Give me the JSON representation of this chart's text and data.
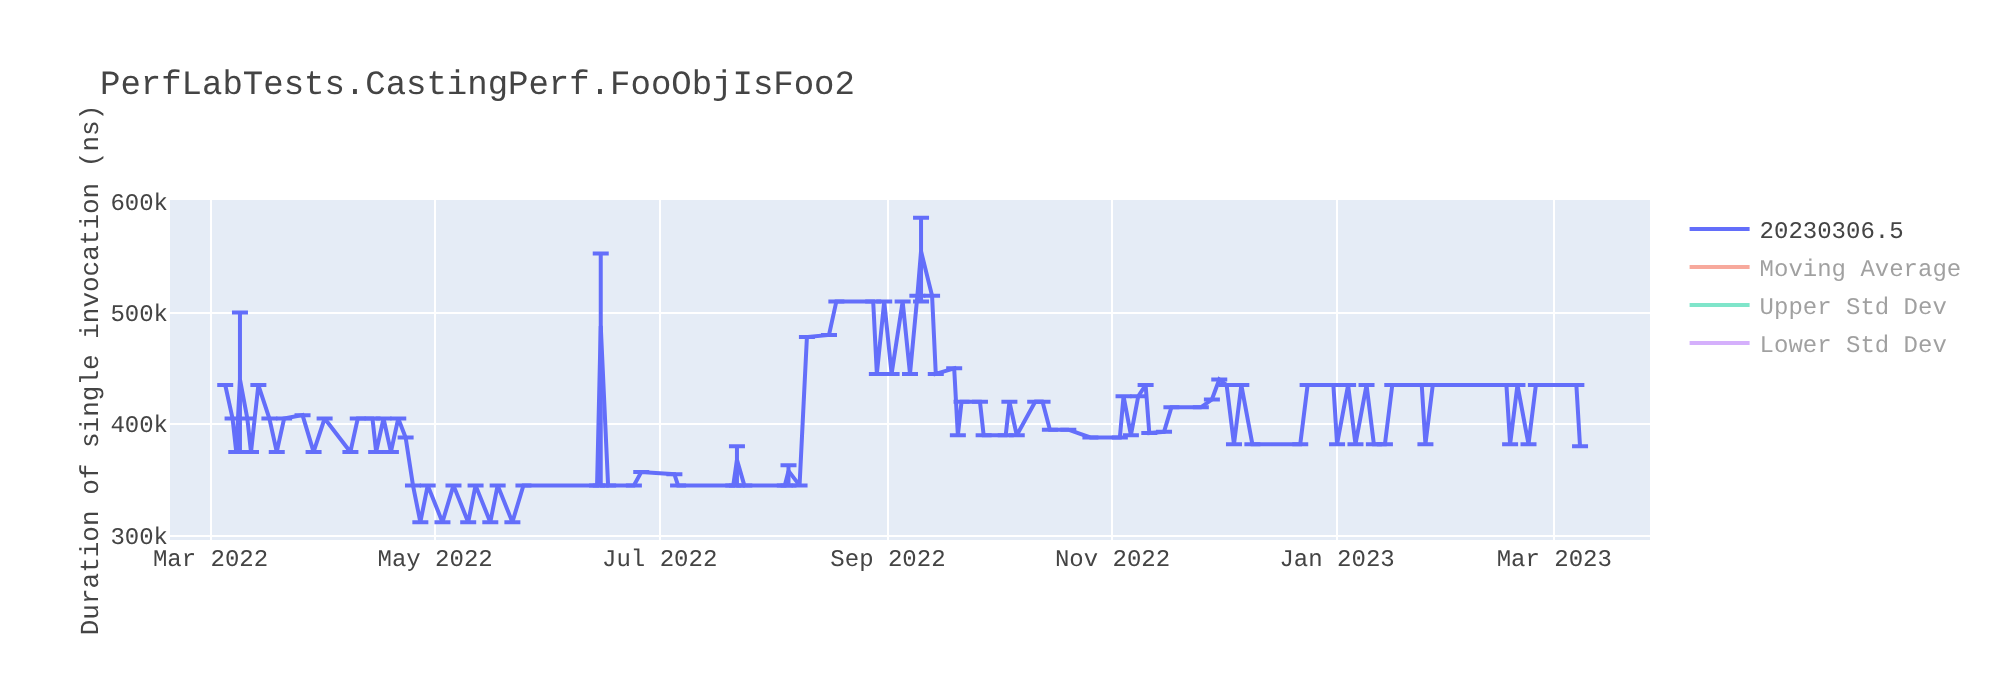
{
  "chart_data": {
    "type": "line",
    "title": "PerfLabTests.CastingPerf.FooObjIsFoo2",
    "ylabel": "Duration of single invocation (ns)",
    "x": [
      "2022-03-05",
      "2022-03-07",
      "2022-03-08",
      "2022-03-09",
      "2022-03-11",
      "2022-03-12",
      "2022-03-14",
      "2022-03-17",
      "2022-03-19",
      "2022-03-21",
      "2022-03-26",
      "2022-03-29",
      "2022-04-01",
      "2022-04-08",
      "2022-04-10",
      "2022-04-14",
      "2022-04-15",
      "2022-04-17",
      "2022-04-19",
      "2022-04-21",
      "2022-04-23",
      "2022-04-25",
      "2022-04-27",
      "2022-04-29",
      "2022-05-03",
      "2022-05-06",
      "2022-05-10",
      "2022-05-12",
      "2022-05-16",
      "2022-05-18",
      "2022-05-22",
      "2022-05-25",
      "2022-06-14",
      "2022-06-15",
      "2022-06-17",
      "2022-06-24",
      "2022-06-26",
      "2022-07-05",
      "2022-07-06",
      "2022-07-21",
      "2022-07-22",
      "2022-07-24",
      "2022-08-04",
      "2022-08-05",
      "2022-08-08",
      "2022-08-10",
      "2022-08-16",
      "2022-08-18",
      "2022-08-28",
      "2022-08-29",
      "2022-08-31",
      "2022-09-02",
      "2022-09-05",
      "2022-09-07",
      "2022-09-09",
      "2022-09-10",
      "2022-09-13",
      "2022-09-14",
      "2022-09-19",
      "2022-09-20",
      "2022-09-21",
      "2022-09-26",
      "2022-09-27",
      "2022-10-03",
      "2022-10-04",
      "2022-10-06",
      "2022-10-11",
      "2022-10-13",
      "2022-10-15",
      "2022-10-20",
      "2022-10-26",
      "2022-11-03",
      "2022-11-04",
      "2022-11-06",
      "2022-11-08",
      "2022-11-10",
      "2022-11-11",
      "2022-11-15",
      "2022-11-17",
      "2022-11-25",
      "2022-11-28",
      "2022-11-30",
      "2022-12-02",
      "2022-12-04",
      "2022-12-06",
      "2022-12-09",
      "2022-12-22",
      "2022-12-24",
      "2022-12-31",
      "2023-01-01",
      "2023-01-04",
      "2023-01-06",
      "2023-01-09",
      "2023-01-11",
      "2023-01-14",
      "2023-01-16",
      "2023-01-24",
      "2023-01-25",
      "2023-01-27",
      "2023-02-16",
      "2023-02-17",
      "2023-02-19",
      "2023-02-22",
      "2023-02-24",
      "2023-03-07",
      "2023-03-08"
    ],
    "series": [
      {
        "name": "20230306.5",
        "color": "#636efa",
        "values": [
          435000,
          405000,
          375000,
          440000,
          405000,
          375000,
          435000,
          405000,
          375000,
          405000,
          408000,
          375000,
          405000,
          375000,
          405000,
          405000,
          375000,
          405000,
          375000,
          405000,
          388000,
          345000,
          312000,
          345000,
          312000,
          345000,
          312000,
          345000,
          312000,
          345000,
          312000,
          345000,
          345000,
          488000,
          345000,
          345000,
          357000,
          355000,
          345000,
          345000,
          368000,
          345000,
          345000,
          358000,
          345000,
          478000,
          480000,
          510000,
          510000,
          445000,
          510000,
          445000,
          510000,
          445000,
          515000,
          555000,
          515000,
          445000,
          450000,
          390000,
          420000,
          420000,
          390000,
          390000,
          420000,
          390000,
          420000,
          420000,
          395000,
          395000,
          388000,
          388000,
          425000,
          390000,
          425000,
          435000,
          392000,
          393000,
          415000,
          415000,
          422000,
          440000,
          435000,
          382000,
          435000,
          382000,
          382000,
          435000,
          435000,
          382000,
          435000,
          382000,
          435000,
          382000,
          382000,
          435000,
          435000,
          382000,
          435000,
          435000,
          382000,
          435000,
          382000,
          435000,
          435000,
          380000
        ],
        "errors": [
          null,
          null,
          null,
          [
            375000,
            500000
          ],
          null,
          null,
          null,
          null,
          null,
          null,
          null,
          null,
          null,
          null,
          null,
          null,
          null,
          null,
          null,
          null,
          null,
          null,
          null,
          null,
          null,
          null,
          null,
          null,
          null,
          null,
          null,
          null,
          null,
          [
            345000,
            553000
          ],
          null,
          null,
          null,
          null,
          null,
          null,
          [
            345000,
            380000
          ],
          null,
          null,
          [
            345000,
            363000
          ],
          null,
          null,
          null,
          null,
          null,
          null,
          null,
          null,
          null,
          null,
          null,
          [
            510000,
            585000
          ],
          null,
          null,
          null,
          null,
          null,
          null,
          null,
          null,
          null,
          null,
          null,
          null,
          null,
          null,
          null,
          null,
          null,
          null,
          null,
          null,
          null,
          null,
          null,
          null,
          null,
          null,
          null,
          null,
          null,
          null,
          null,
          null,
          null,
          null,
          null,
          null,
          null,
          null,
          null,
          null,
          null,
          null,
          null,
          null,
          null,
          null,
          null,
          null,
          null,
          null
        ]
      },
      {
        "name": "Moving Average",
        "color": "#ef553b",
        "values": [
          null,
          null,
          null,
          null,
          null,
          null,
          null,
          null,
          null,
          null,
          null,
          null,
          null,
          null,
          null,
          null,
          null,
          null,
          null,
          null,
          null,
          null,
          null,
          null,
          null,
          null,
          null,
          null,
          null,
          null,
          null,
          null,
          null,
          null,
          null,
          null,
          null,
          null,
          null,
          null,
          null,
          null,
          null,
          null,
          null,
          null,
          null,
          null,
          null,
          null,
          null,
          null,
          null,
          null,
          null,
          null,
          null,
          null,
          null,
          null,
          null,
          null,
          null,
          null,
          null,
          null,
          null,
          null,
          null,
          null,
          null,
          null,
          null,
          null,
          null,
          null,
          null,
          null,
          null,
          null,
          null,
          null,
          null,
          null,
          null,
          null,
          null,
          null,
          null,
          null,
          null,
          null,
          null,
          null,
          null,
          null,
          null,
          null,
          null,
          null,
          null,
          null,
          null,
          null,
          null,
          null
        ]
      },
      {
        "name": "Upper Std Dev",
        "color": "#00cc96",
        "values": [
          null,
          null,
          null,
          null,
          null,
          null,
          null,
          null,
          null,
          null,
          null,
          null,
          null,
          null,
          null,
          null,
          null,
          null,
          null,
          null,
          null,
          null,
          null,
          null,
          null,
          null,
          null,
          null,
          null,
          null,
          null,
          null,
          null,
          null,
          null,
          null,
          null,
          null,
          null,
          null,
          null,
          null,
          null,
          null,
          null,
          null,
          null,
          null,
          null,
          null,
          null,
          null,
          null,
          null,
          null,
          null,
          null,
          null,
          null,
          null,
          null,
          null,
          null,
          null,
          null,
          null,
          null,
          null,
          null,
          null,
          null,
          null,
          null,
          null,
          null,
          null,
          null,
          null,
          null,
          null,
          null,
          null,
          null,
          null,
          null,
          null,
          null,
          null,
          null,
          null,
          null,
          null,
          null,
          null,
          null,
          null,
          null,
          null,
          null,
          null,
          null,
          null,
          null,
          null,
          null,
          null
        ]
      },
      {
        "name": "Lower Std Dev",
        "color": "#ab63fa",
        "values": [
          null,
          null,
          null,
          null,
          null,
          null,
          null,
          null,
          null,
          null,
          null,
          null,
          null,
          null,
          null,
          null,
          null,
          null,
          null,
          null,
          null,
          null,
          null,
          null,
          null,
          null,
          null,
          null,
          null,
          null,
          null,
          null,
          null,
          null,
          null,
          null,
          null,
          null,
          null,
          null,
          null,
          null,
          null,
          null,
          null,
          null,
          null,
          null,
          null,
          null,
          null,
          null,
          null,
          null,
          null,
          null,
          null,
          null,
          null,
          null,
          null,
          null,
          null,
          null,
          null,
          null,
          null,
          null,
          null,
          null,
          null,
          null,
          null,
          null,
          null,
          null,
          null,
          null,
          null,
          null,
          null,
          null,
          null,
          null,
          null,
          null,
          null,
          null,
          null,
          null,
          null,
          null,
          null,
          null,
          null,
          null,
          null,
          null,
          null,
          null,
          null,
          null,
          null,
          null,
          null,
          null
        ]
      }
    ],
    "xlim": [
      "2022-02-18",
      "2023-03-27"
    ],
    "xticks": [
      {
        "value": "2022-03-01",
        "label": "Mar 2022"
      },
      {
        "value": "2022-05-01",
        "label": "May 2022"
      },
      {
        "value": "2022-07-01",
        "label": "Jul 2022"
      },
      {
        "value": "2022-09-01",
        "label": "Sep 2022"
      },
      {
        "value": "2022-11-01",
        "label": "Nov 2022"
      },
      {
        "value": "2023-01-01",
        "label": "Jan 2023"
      },
      {
        "value": "2023-03-01",
        "label": "Mar 2023"
      }
    ],
    "ylim": [
      296000,
      601000
    ],
    "yticks": [
      {
        "value": 300000,
        "label": "300k"
      },
      {
        "value": 400000,
        "label": "400k"
      },
      {
        "value": 500000,
        "label": "500k"
      },
      {
        "value": 600000,
        "label": "600k"
      }
    ],
    "grid": true,
    "legend": "top right",
    "marker": "none",
    "line_style": "solid"
  }
}
